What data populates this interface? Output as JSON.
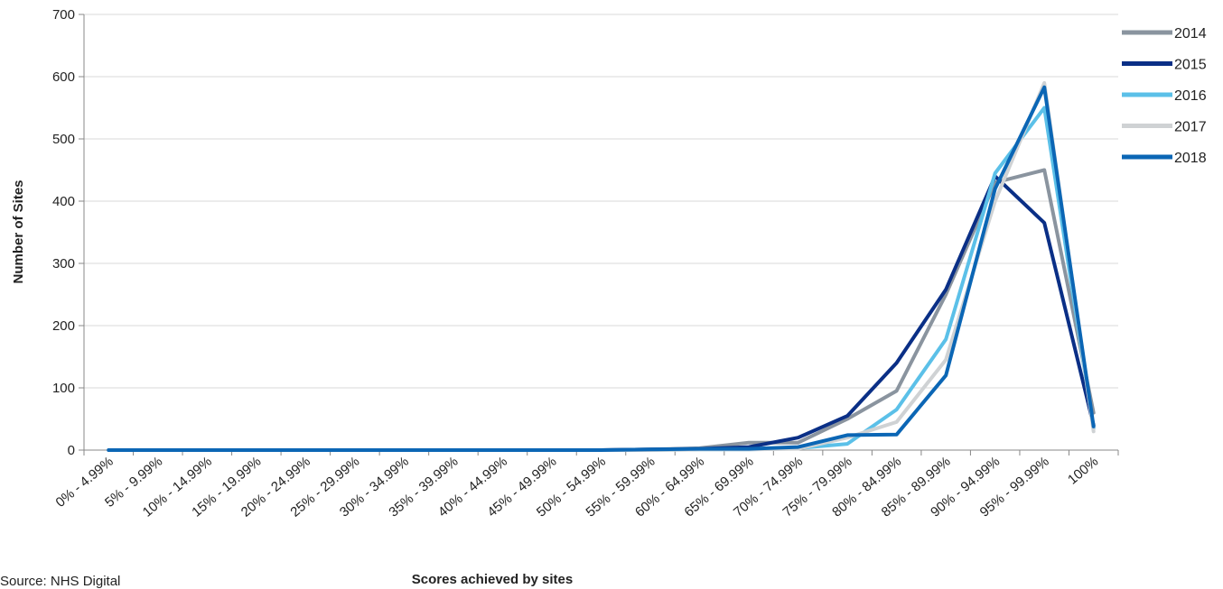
{
  "source_note": "Source: NHS Digital",
  "chart_data": {
    "type": "line",
    "title": "",
    "xlabel": "Scores achieved by sites",
    "ylabel": "Number of Sites",
    "ylim": [
      0,
      700
    ],
    "yticks": [
      0,
      100,
      200,
      300,
      400,
      500,
      600,
      700
    ],
    "grid": true,
    "legend_position": "right",
    "categories": [
      "0% - 4.99%",
      "5% - 9.99%",
      "10% - 14.99%",
      "15% - 19.99%",
      "20% - 24.99%",
      "25% - 29.99%",
      "30% - 34.99%",
      "35% - 39.99%",
      "40% - 44.99%",
      "45% - 49.99%",
      "50% - 54.99%",
      "55% - 59.99%",
      "60% - 64.99%",
      "65% - 69.99%",
      "70% - 74.99%",
      "75% - 79.99%",
      "80% - 84.99%",
      "85% - 89.99%",
      "90% - 94.99%",
      "95% - 99.99%",
      "100%"
    ],
    "series": [
      {
        "name": "2014",
        "color": "#8a949f",
        "values": [
          0,
          0,
          0,
          0,
          0,
          0,
          0,
          0,
          0,
          0,
          0,
          1,
          3,
          12,
          12,
          50,
          95,
          250,
          430,
          450,
          60
        ]
      },
      {
        "name": "2015",
        "color": "#0a2f86",
        "values": [
          0,
          0,
          0,
          0,
          0,
          0,
          0,
          0,
          0,
          0,
          0,
          1,
          2,
          5,
          20,
          55,
          140,
          258,
          440,
          365,
          40
        ]
      },
      {
        "name": "2016",
        "color": "#5bc0e8",
        "values": [
          0,
          0,
          0,
          0,
          0,
          0,
          0,
          0,
          0,
          0,
          0,
          0,
          1,
          1,
          3,
          10,
          65,
          178,
          445,
          550,
          35
        ]
      },
      {
        "name": "2017",
        "color": "#cfd2d4",
        "values": [
          0,
          0,
          0,
          0,
          0,
          0,
          0,
          0,
          0,
          0,
          0,
          0,
          1,
          1,
          2,
          20,
          45,
          145,
          400,
          590,
          30
        ]
      },
      {
        "name": "2018",
        "color": "#0b66b5",
        "values": [
          0,
          0,
          0,
          0,
          0,
          0,
          0,
          0,
          0,
          0,
          0,
          1,
          2,
          2,
          5,
          24,
          25,
          120,
          420,
          583,
          38
        ]
      }
    ]
  }
}
